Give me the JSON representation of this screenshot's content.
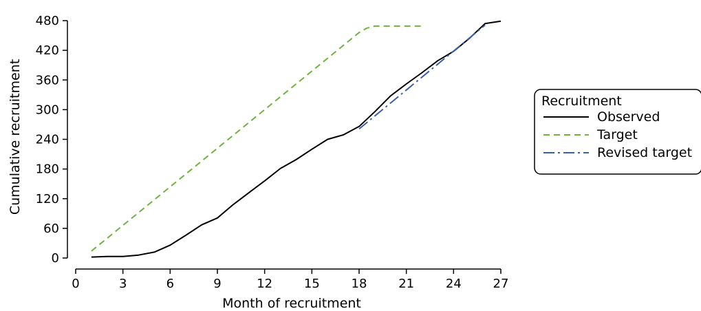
{
  "chart_data": {
    "type": "line",
    "title": "",
    "xlabel": "Month of recruitment",
    "ylabel": "Cumulative recruitment",
    "xlim": [
      0,
      27
    ],
    "ylim": [
      0,
      480
    ],
    "xticks": [
      0,
      3,
      6,
      9,
      12,
      15,
      18,
      21,
      24,
      27
    ],
    "yticks": [
      0,
      60,
      120,
      180,
      240,
      300,
      360,
      420,
      480
    ],
    "grid": false,
    "legend": {
      "title": "Recruitment",
      "placement": "right"
    },
    "series": [
      {
        "name": "Observed",
        "color": "#000000",
        "dash": "solid",
        "x": [
          1,
          2,
          3,
          4,
          5,
          6,
          7,
          8,
          9,
          10,
          11,
          12,
          13,
          14,
          15,
          16,
          17,
          18,
          19,
          20,
          21,
          22,
          23,
          24,
          25,
          26,
          27
        ],
        "y": [
          2,
          3,
          3,
          6,
          12,
          26,
          46,
          67,
          81,
          108,
          132,
          156,
          181,
          199,
          220,
          240,
          249,
          266,
          296,
          328,
          352,
          375,
          399,
          418,
          444,
          474,
          479
        ]
      },
      {
        "name": "Target",
        "color": "#6db33f",
        "dash": "dashed",
        "x": [
          1,
          18,
          18.5,
          19,
          22
        ],
        "y": [
          14,
          456,
          465,
          469,
          469
        ]
      },
      {
        "name": "Revised target",
        "color": "#3a5fa8",
        "dash": "dashdot",
        "x": [
          18,
          26
        ],
        "y": [
          261,
          471
        ]
      }
    ]
  }
}
